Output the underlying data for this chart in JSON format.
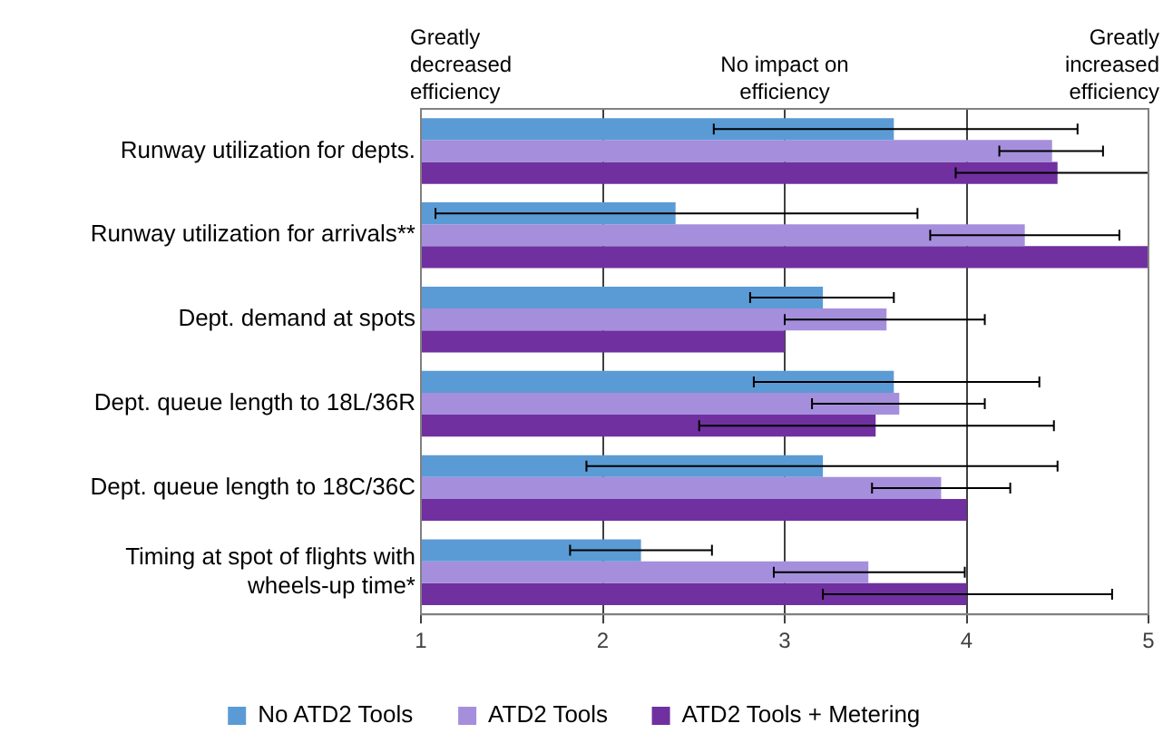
{
  "chart_data": {
    "type": "bar",
    "orientation": "horizontal",
    "categories": [
      "Runway utilization for depts.",
      "Runway utilization for arrivals**",
      "Dept. demand at spots",
      "Dept. queue length to 18L/36R",
      "Dept. queue length to 18C/36C",
      "Timing at spot of flights with wheels-up time*"
    ],
    "series": [
      {
        "name": "No ATD2 Tools",
        "color": "#5b9bd5",
        "values": [
          3.6,
          2.4,
          3.21,
          3.6,
          3.21,
          2.21
        ],
        "errors": [
          [
            2.61,
            4.61
          ],
          [
            1.08,
            3.73
          ],
          [
            2.81,
            3.6
          ],
          [
            2.83,
            4.4
          ],
          [
            1.91,
            4.5
          ],
          [
            1.82,
            2.6
          ]
        ]
      },
      {
        "name": "ATD2 Tools",
        "color": "#a58fdc",
        "values": [
          4.47,
          4.32,
          3.56,
          3.63,
          3.86,
          3.46
        ],
        "errors": [
          [
            4.18,
            4.75
          ],
          [
            3.8,
            4.84
          ],
          [
            3.0,
            4.1
          ],
          [
            3.15,
            4.1
          ],
          [
            3.48,
            4.24
          ],
          [
            2.94,
            3.99
          ]
        ]
      },
      {
        "name": "ATD2 Tools + Metering",
        "color": "#7030a0",
        "values": [
          4.5,
          5.0,
          3.0,
          3.5,
          4.0,
          4.0
        ],
        "errors": [
          [
            3.94,
            5.0
          ],
          null,
          null,
          [
            2.53,
            4.48
          ],
          null,
          [
            3.21,
            4.8
          ]
        ]
      }
    ],
    "xlim": [
      1,
      5
    ],
    "xticks": [
      1,
      2,
      3,
      4,
      5
    ],
    "grid": "x",
    "legend": "bottom",
    "annotations": [
      "Greatly decreased efficiency",
      "No impact on efficiency",
      "Greatly increased efficiency"
    ]
  }
}
